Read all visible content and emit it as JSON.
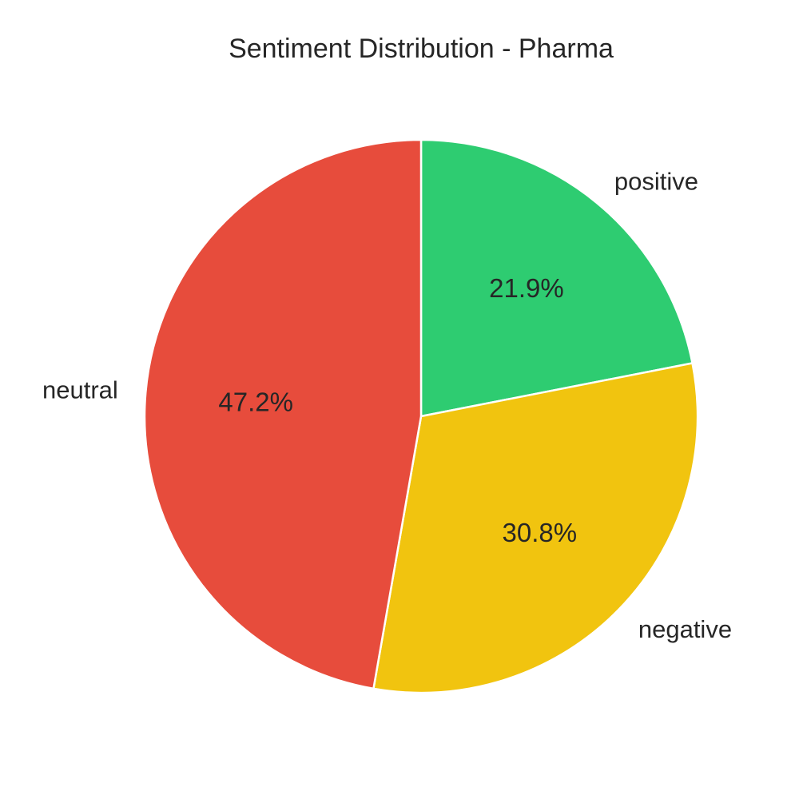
{
  "chart_data": {
    "type": "pie",
    "title": "Sentiment Distribution - Pharma",
    "slices": [
      {
        "label": "positive",
        "value": 21.9,
        "pct_label": "21.9%",
        "color": "#2ecc71"
      },
      {
        "label": "negative",
        "value": 30.8,
        "pct_label": "30.8%",
        "color": "#f1c40f"
      },
      {
        "label": "neutral",
        "value": 47.2,
        "pct_label": "47.2%",
        "color": "#e74c3c"
      }
    ],
    "start": "top",
    "direction": "clockwise",
    "wedge_edge_color": "#ffffff"
  }
}
